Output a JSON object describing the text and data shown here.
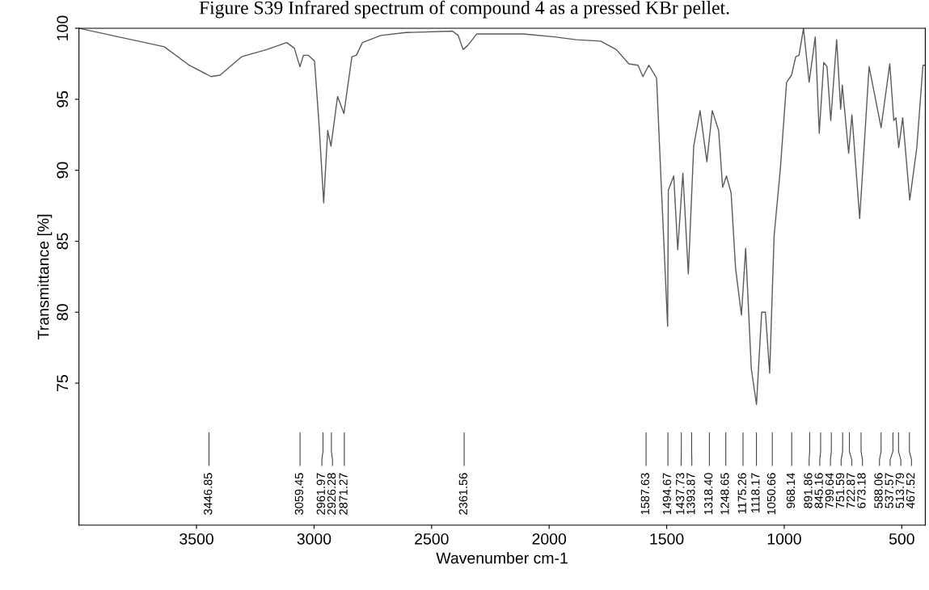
{
  "chart_data": {
    "type": "line",
    "title": "Figure S39 Infrared spectrum of compound 4 as a pressed KBr pellet.",
    "xlabel": "Wavenumber cm-1",
    "ylabel": "Transmittance [%]",
    "xlim": [
      4000,
      400
    ],
    "ylim": [
      65,
      100
    ],
    "xticks": [
      3500,
      3000,
      2500,
      2000,
      1500,
      1000,
      500
    ],
    "yticks": [
      75,
      80,
      85,
      90,
      95,
      100
    ],
    "grid": false,
    "legend": false,
    "marker": "none",
    "line_style": "solid",
    "series": [
      {
        "color": "#5a5a5a",
        "x": [
          4000,
          3637,
          3531,
          3438,
          3400,
          3308,
          3202,
          3116,
          3084,
          3060,
          3045,
          3024,
          2998,
          2979,
          2959,
          2942,
          2928,
          2900,
          2873,
          2839,
          2820,
          2794,
          2716,
          2610,
          2411,
          2387,
          2366,
          2346,
          2313,
          2307,
          2110,
          1978,
          1885,
          1781,
          1714,
          1661,
          1622,
          1601,
          1576,
          1543,
          1524,
          1496,
          1493,
          1470,
          1453,
          1431,
          1408,
          1385,
          1358,
          1329,
          1306,
          1279,
          1262,
          1246,
          1226,
          1207,
          1182,
          1164,
          1140,
          1118,
          1096,
          1080,
          1062,
          1043,
          1017,
          990,
          969,
          951,
          937,
          918,
          894,
          868,
          851,
          832,
          818,
          802,
          777,
          760,
          753,
          726,
          712,
          679,
          639,
          614,
          588,
          551,
          534,
          525,
          513,
          496,
          466,
          436,
          410,
          400
        ],
        "values": [
          100.0,
          98.7,
          97.4,
          96.6,
          96.7,
          98.0,
          98.5,
          99.0,
          98.6,
          97.3,
          98.1,
          98.1,
          97.7,
          93.3,
          87.7,
          92.8,
          91.7,
          95.2,
          94.0,
          98.0,
          98.1,
          99.0,
          99.5,
          99.7,
          99.8,
          99.5,
          98.5,
          98.8,
          99.5,
          99.6,
          99.6,
          99.4,
          99.2,
          99.1,
          98.5,
          97.5,
          97.4,
          96.6,
          97.4,
          96.5,
          89.3,
          79.0,
          88.6,
          89.6,
          84.4,
          89.8,
          82.7,
          91.7,
          94.2,
          90.6,
          94.2,
          92.8,
          88.8,
          89.6,
          88.4,
          83.1,
          79.8,
          84.5,
          76.0,
          73.5,
          80.0,
          80.0,
          75.7,
          85.4,
          90.0,
          96.2,
          96.7,
          98.0,
          98.1,
          100.0,
          96.2,
          99.4,
          92.6,
          97.6,
          97.3,
          93.5,
          99.2,
          94.3,
          96.0,
          91.2,
          93.9,
          86.6,
          97.3,
          95.2,
          93.0,
          97.5,
          93.5,
          93.7,
          91.6,
          93.7,
          87.9,
          91.6,
          97.4,
          97.4
        ]
      }
    ],
    "ref_lines": [
      {
        "axis": "x",
        "value": 3446.85,
        "label": "3446.85"
      },
      {
        "axis": "x",
        "value": 3059.45,
        "label": "3059.45"
      },
      {
        "axis": "x",
        "value": 2961.97,
        "label": "2961.97"
      },
      {
        "axis": "x",
        "value": 2926.28,
        "label": "2926.28"
      },
      {
        "axis": "x",
        "value": 2871.27,
        "label": "2871.27"
      },
      {
        "axis": "x",
        "value": 2361.56,
        "label": "2361.56"
      },
      {
        "axis": "x",
        "value": 1587.63,
        "label": "1587.63"
      },
      {
        "axis": "x",
        "value": 1494.67,
        "label": "1494.67"
      },
      {
        "axis": "x",
        "value": 1437.73,
        "label": "1437.73"
      },
      {
        "axis": "x",
        "value": 1393.87,
        "label": "1393.87"
      },
      {
        "axis": "x",
        "value": 1318.4,
        "label": "1318.40"
      },
      {
        "axis": "x",
        "value": 1248.65,
        "label": "1248.65"
      },
      {
        "axis": "x",
        "value": 1175.26,
        "label": "1175.26"
      },
      {
        "axis": "x",
        "value": 1118.17,
        "label": "1118.17"
      },
      {
        "axis": "x",
        "value": 1050.66,
        "label": "1050.66"
      },
      {
        "axis": "x",
        "value": 968.14,
        "label": "968.14"
      },
      {
        "axis": "x",
        "value": 891.86,
        "label": "891.86"
      },
      {
        "axis": "x",
        "value": 845.16,
        "label": "845.16"
      },
      {
        "axis": "x",
        "value": 799.64,
        "label": "799.64"
      },
      {
        "axis": "x",
        "value": 751.59,
        "label": "751.59"
      },
      {
        "axis": "x",
        "value": 722.87,
        "label": "722.87"
      },
      {
        "axis": "x",
        "value": 673.18,
        "label": "673.18"
      },
      {
        "axis": "x",
        "value": 588.06,
        "label": "588.06"
      },
      {
        "axis": "x",
        "value": 537.57,
        "label": "537.57"
      },
      {
        "axis": "x",
        "value": 513.79,
        "label": "513.79"
      },
      {
        "axis": "x",
        "value": 467.52,
        "label": "467.52"
      }
    ]
  }
}
